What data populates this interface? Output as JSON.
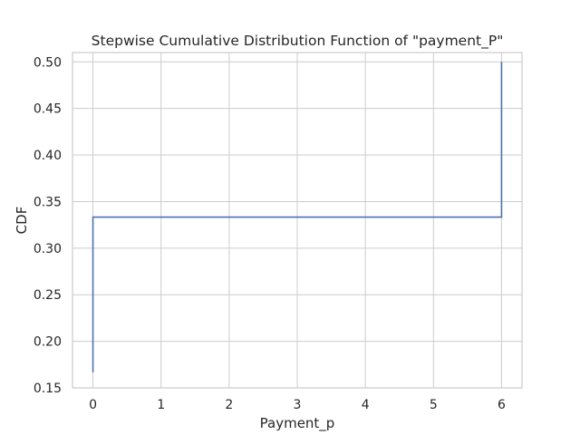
{
  "chart_data": {
    "type": "line",
    "drawstyle": "steps-post",
    "title": "Stepwise Cumulative Distribution Function of \"payment_P\"",
    "xlabel": "Payment_p",
    "ylabel": "CDF",
    "xlim": [
      -0.3,
      6.3
    ],
    "ylim": [
      0.15,
      0.51
    ],
    "x_ticks": [
      0,
      1,
      2,
      3,
      4,
      5,
      6
    ],
    "y_ticks": [
      0.15,
      0.2,
      0.25,
      0.3,
      0.35,
      0.4,
      0.45,
      0.5
    ],
    "x_tick_labels": [
      "0",
      "1",
      "2",
      "3",
      "4",
      "5",
      "6"
    ],
    "y_tick_labels": [
      "0.15",
      "0.20",
      "0.25",
      "0.30",
      "0.35",
      "0.40",
      "0.45",
      "0.50"
    ],
    "grid": true,
    "series": [
      {
        "color": "#4c72b0",
        "x": [
          0,
          0,
          6,
          6
        ],
        "y": [
          0.1667,
          0.3333,
          0.3333,
          0.5
        ]
      }
    ]
  }
}
